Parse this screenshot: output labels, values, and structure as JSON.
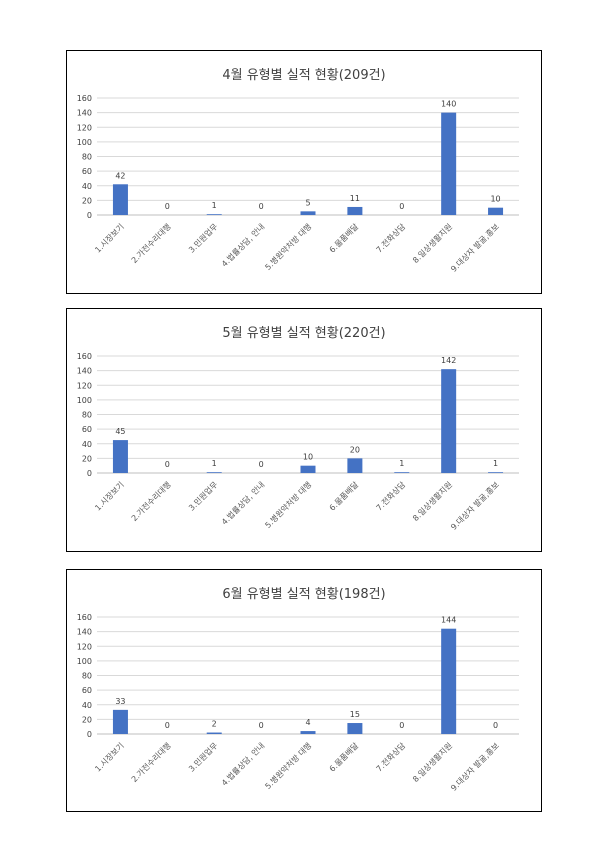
{
  "colors": {
    "bar": "#4472c4",
    "grid": "#d9d9d9",
    "axis": "#bfbfbf",
    "text": "#404040"
  },
  "chart_data": [
    {
      "type": "bar",
      "title": "4월 유형별 실적 현황(209건)",
      "categories": [
        "1.시장보기",
        "2.가전수리대행",
        "3.민원업무",
        "4.법률상담, 안내",
        "5.병원약처방 대행",
        "6.물품배달",
        "7.전화상담",
        "8.일상생활지원",
        "9.대상자 발굴,홍보"
      ],
      "values": [
        42,
        0,
        1,
        0,
        5,
        11,
        0,
        140,
        10
      ],
      "data_labels": [
        "42",
        "0",
        "1",
        "0",
        "5",
        "11",
        "0",
        "140",
        "10"
      ],
      "yticks": [
        "0",
        "20",
        "40",
        "60",
        "80",
        "100",
        "120",
        "140",
        "160"
      ],
      "ylim": [
        0,
        160
      ],
      "grid": true,
      "legend": "none"
    },
    {
      "type": "bar",
      "title": "5월 유형별 실적 현황(220건)",
      "categories": [
        "1.시장보기",
        "2.가전수리대행",
        "3.민원업무",
        "4.법률상담, 안내",
        "5.병원약처방 대행",
        "6.물품배달",
        "7.전화상담",
        "8.일상생활지원",
        "9.대상자 발굴,홍보"
      ],
      "values": [
        45,
        0,
        1,
        0,
        10,
        20,
        1,
        142,
        1
      ],
      "data_labels": [
        "45",
        "0",
        "1",
        "0",
        "10",
        "20",
        "1",
        "142",
        "1"
      ],
      "yticks": [
        "0",
        "20",
        "40",
        "60",
        "80",
        "100",
        "120",
        "140",
        "160"
      ],
      "ylim": [
        0,
        160
      ],
      "grid": true,
      "legend": "none"
    },
    {
      "type": "bar",
      "title": "6월 유형별 실적 현황(198건)",
      "categories": [
        "1.시장보기",
        "2.가전수리대행",
        "3.민원업무",
        "4.법률상담, 안내",
        "5.병원약처방 대행",
        "6.물품배달",
        "7.전화상담",
        "8.일상생활지원",
        "9.대상자 발굴,홍보"
      ],
      "values": [
        33,
        0,
        2,
        0,
        4,
        15,
        0,
        144,
        0
      ],
      "data_labels": [
        "33",
        "0",
        "2",
        "0",
        "4",
        "15",
        "0",
        "144",
        "0"
      ],
      "yticks": [
        "0",
        "20",
        "40",
        "60",
        "80",
        "100",
        "120",
        "140",
        "160"
      ],
      "ylim": [
        0,
        160
      ],
      "grid": true,
      "legend": "none"
    }
  ]
}
